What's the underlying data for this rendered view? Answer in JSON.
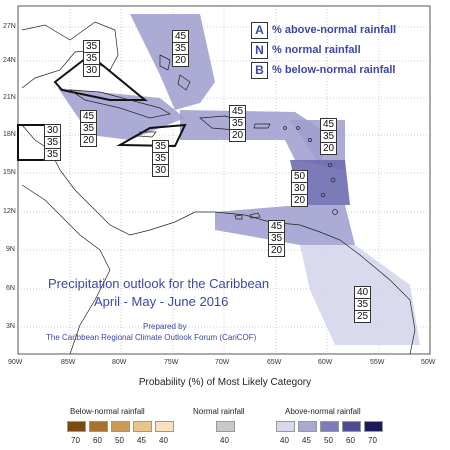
{
  "legend_key": [
    {
      "letter": "A",
      "text": "% above-normal rainfall"
    },
    {
      "letter": "N",
      "text": "% normal rainfall"
    },
    {
      "letter": "B",
      "text": "% below-normal rainfall"
    }
  ],
  "title_line1": "Precipitation outlook for the Caribbean",
  "title_line2": "April - May - June 2016",
  "credit_line1": "Prepared by",
  "credit_line2": "The Caribbean Regional Climate Outlook Forum (CariCOF)",
  "axis": {
    "lon_labels": [
      "90W",
      "85W",
      "80W",
      "75W",
      "70W",
      "65W",
      "60W",
      "55W",
      "50W"
    ],
    "lat_labels": [
      "27N",
      "24N",
      "21N",
      "18N",
      "15N",
      "12N",
      "9N",
      "6N",
      "3N"
    ]
  },
  "probability_boxes": [
    {
      "id": "bahamas",
      "a": "45",
      "n": "35",
      "b": "20"
    },
    {
      "id": "cuba-west",
      "a": "35",
      "n": "35",
      "b": "30"
    },
    {
      "id": "cuba-central",
      "a": "45",
      "n": "35",
      "b": "20"
    },
    {
      "id": "jamaica",
      "a": "35",
      "n": "35",
      "b": "30"
    },
    {
      "id": "belize",
      "a": "30",
      "n": "35",
      "b": "35"
    },
    {
      "id": "hispaniola",
      "a": "45",
      "n": "35",
      "b": "20"
    },
    {
      "id": "leewards",
      "a": "45",
      "n": "35",
      "b": "20"
    },
    {
      "id": "windwards",
      "a": "50",
      "n": "30",
      "b": "20"
    },
    {
      "id": "abc-islands",
      "a": "45",
      "n": "35",
      "b": "20"
    },
    {
      "id": "guianas",
      "a": "40",
      "n": "35",
      "b": "25"
    }
  ],
  "bottom_legend": {
    "title": "Probability (%) of Most Likely Category",
    "below": {
      "label": "Below-normal rainfall",
      "values": [
        "70",
        "60",
        "50",
        "45",
        "40"
      ],
      "colors": [
        "#7b4a12",
        "#a8722e",
        "#cc9a55",
        "#e8c48a",
        "#f7e2bd"
      ]
    },
    "normal": {
      "label": "Normal rainfall",
      "values": [
        "40"
      ],
      "colors": [
        "#c8c8c8"
      ]
    },
    "above": {
      "label": "Above-normal rainfall",
      "values": [
        "40",
        "45",
        "50",
        "60",
        "70"
      ],
      "colors": [
        "#d8d8ee",
        "#a9a9d4",
        "#7c7cb8",
        "#4d4b93",
        "#1d1a5a"
      ]
    }
  },
  "colors": {
    "above_45": "#9c9ccf",
    "above_40": "#d6d6ec",
    "above_50": "#6e6bb0",
    "title_blue": "#3b47a6"
  }
}
